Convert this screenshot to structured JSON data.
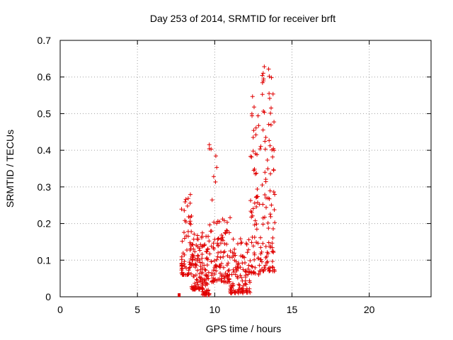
{
  "chart_data": {
    "type": "scatter",
    "title": "Day 253 of 2014, SRMTID for receiver brft",
    "xlabel": "GPS time / hours",
    "ylabel": "SRMTID / TECUs",
    "xlim": [
      0,
      24
    ],
    "ylim": [
      0,
      0.7
    ],
    "xticks": [
      "0",
      "5",
      "10",
      "15",
      "20"
    ],
    "yticks": [
      "0",
      "0.1",
      "0.2",
      "0.3",
      "0.4",
      "0.5",
      "0.6",
      "0.7"
    ],
    "grid": true,
    "marker": "+",
    "series_color": "#e00000",
    "zero_values_near_x": 7.7,
    "segments": [
      {
        "x0": 7.85,
        "x1": 8.55,
        "n": 70,
        "base": 0.06,
        "top": 0.28
      },
      {
        "x0": 8.5,
        "x1": 9.25,
        "n": 90,
        "base": 0.02,
        "top": 0.19
      },
      {
        "x0": 9.2,
        "x1": 9.65,
        "n": 55,
        "base": 0.005,
        "top": 0.17
      },
      {
        "x0": 9.65,
        "x1": 10.2,
        "n": 45,
        "base": 0.04,
        "top": 0.42
      },
      {
        "x0": 10.2,
        "x1": 11.0,
        "n": 70,
        "base": 0.04,
        "top": 0.24
      },
      {
        "x0": 11.0,
        "x1": 12.3,
        "n": 110,
        "base": 0.01,
        "top": 0.16
      },
      {
        "x0": 12.3,
        "x1": 12.9,
        "n": 60,
        "base": 0.06,
        "top": 0.55
      },
      {
        "x0": 12.9,
        "x1": 13.9,
        "n": 110,
        "base": 0.07,
        "top": 0.64
      }
    ]
  }
}
